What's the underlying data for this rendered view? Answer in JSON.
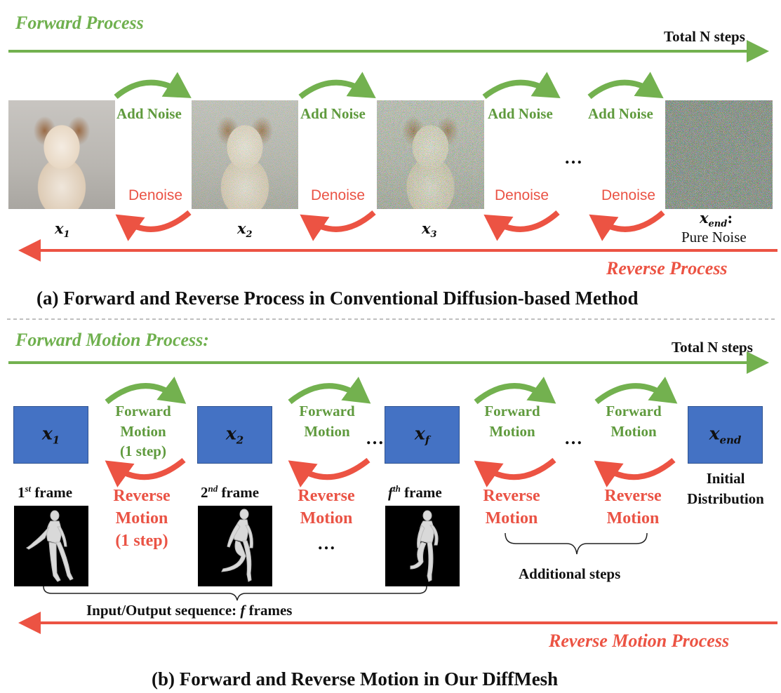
{
  "part_a": {
    "forward_title": "Forward Process",
    "total_steps": "Total N steps",
    "add_noise": "Add Noise",
    "denoise": "Denoise",
    "ellipsis": "…",
    "x1": "x",
    "x1_sub": "1",
    "x2": "x",
    "x2_sub": "2",
    "x3": "x",
    "x3_sub": "3",
    "xend": "x",
    "xend_sub": "end",
    "xend_colon": ":",
    "pure_noise": "Pure Noise",
    "reverse_title": "Reverse Process",
    "caption": "(a) Forward and Reverse Process in Conventional Diffusion-based Method"
  },
  "part_b": {
    "forward_title": "Forward Motion Process:",
    "total_steps": "Total N steps",
    "fwd_motion_line1": "Forward",
    "fwd_motion_line2": "Motion",
    "fwd_motion_line3": "(1 step)",
    "rev_motion_line1": "Reverse",
    "rev_motion_line2": "Motion",
    "rev_motion_line3": "(1 step)",
    "box_x1": "x",
    "box_x1_sub": "1",
    "box_x2": "x",
    "box_x2_sub": "2",
    "box_xf": "x",
    "box_xf_sub": "f",
    "box_xend": "x",
    "box_xend_sub": "end",
    "frame1": "1",
    "frame1_sup": "st",
    "frame2": "2",
    "frame2_sup": "nd",
    "framef": "f",
    "framef_sup": "th",
    "frame_word": " frame",
    "initial_line1": "Initial",
    "initial_line2": "Distribution",
    "ellipsis": "…",
    "additional_steps": "Additional steps",
    "io_sequence": "Input/Output sequence: ",
    "io_f": "f",
    "io_frames": " frames",
    "reverse_title": "Reverse Motion Process",
    "caption": "(b) Forward and Reverse Motion in Our DiffMesh"
  },
  "colors": {
    "forward_green": "#73b14f",
    "reverse_red": "#ec5343",
    "box_blue": "#4472c4",
    "divider_gray": "#999999"
  }
}
